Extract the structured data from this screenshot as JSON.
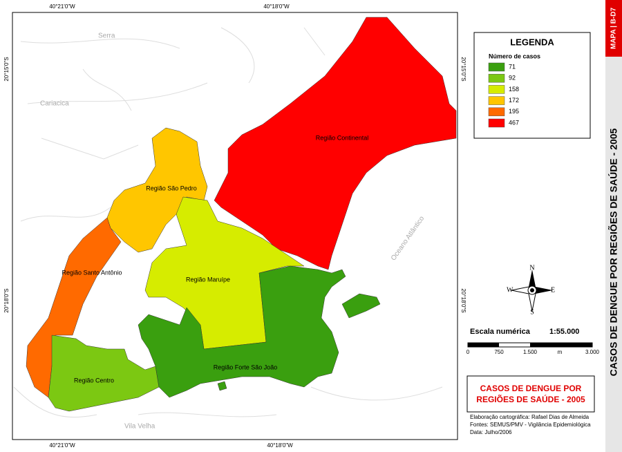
{
  "map": {
    "coords": {
      "top": [
        "40°21'0\"W",
        "40°18'0\"W"
      ],
      "bottom": [
        "40°21'0\"W",
        "40°18'0\"W"
      ],
      "left": [
        "20°15'0\"S",
        "20°18'0\"S"
      ],
      "right": [
        "20°15'0\"S",
        "20°18'0\"S"
      ]
    },
    "places": [
      "Serra",
      "Cariacica",
      "Vila Velha",
      "Oceano Atlântico"
    ],
    "regions": [
      {
        "label": "Região Continental",
        "cases": 467
      },
      {
        "label": "Região São Pedro",
        "cases": 172
      },
      {
        "label": "Região Santo Antônio",
        "cases": 195
      },
      {
        "label": "Região Centro",
        "cases": 92
      },
      {
        "label": "Região Maruípe",
        "cases": 158
      },
      {
        "label": "Região Forte São João",
        "cases": 71
      }
    ]
  },
  "legend": {
    "title": "LEGENDA",
    "subtitle": "Número de casos",
    "items": [
      {
        "cases": 71,
        "color": "#3a9f0f"
      },
      {
        "cases": 92,
        "color": "#7cc812"
      },
      {
        "cases": 158,
        "color": "#d6ec00"
      },
      {
        "cases": 172,
        "color": "#ffc600"
      },
      {
        "cases": 195,
        "color": "#ff6a00"
      },
      {
        "cases": 467,
        "color": "#ff0000"
      }
    ]
  },
  "compass": {
    "n": "N",
    "s": "S",
    "e": "E",
    "w": "W"
  },
  "scale": {
    "label": "Escala numérica",
    "ratio": "1:55.000",
    "ticks": [
      "0",
      "750",
      "1.500",
      "3.000"
    ],
    "unit": "m"
  },
  "title_box": {
    "line1": "CASOS DE DENGUE POR",
    "line2": "REGIÕES DE SAÚDE - 2005"
  },
  "credits": [
    "Elaboração cartográfica: Rafael Dias de Almeida",
    "Fontes: SEMUS/PMV - Vigilância Epidemiológica",
    "Data: Julho/2006"
  ],
  "side": {
    "code": "MAPA | B-D7",
    "title": "CASOS DE DENGUE POR REGIÕES DE SAÚDE - 2005"
  }
}
